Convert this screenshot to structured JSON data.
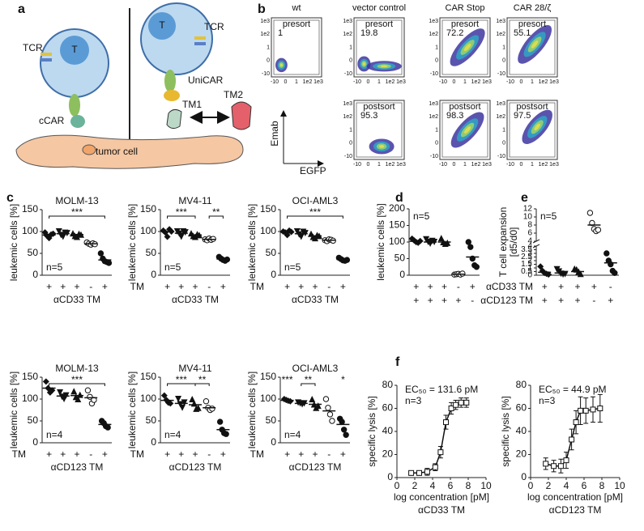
{
  "panel_a": {
    "label": "a",
    "tcr_left": "TCR",
    "t_left": "T",
    "tcr_right": "TCR",
    "t_right": "T",
    "unicar": "UniCAR",
    "ccar": "cCAR",
    "tm1": "TM1",
    "tm2": "TM2",
    "tumor": "tumor cell"
  },
  "panel_b": {
    "label": "b",
    "x_tick_labels": [
      "-10",
      "0",
      "1",
      "1e2",
      "1e3"
    ],
    "y_tick_labels": [
      "1e3",
      "1e2",
      "1",
      "0",
      "-10"
    ],
    "y_axis_label": "Emab",
    "x_axis_label": "EGFP",
    "columns": [
      {
        "title": "wt",
        "rows": [
          {
            "gate": "presort",
            "percent": 1
          }
        ]
      },
      {
        "title": "vector control",
        "rows": [
          {
            "gate": "presort",
            "percent": 19.8
          },
          {
            "gate": "postsort",
            "percent": 95.3
          }
        ]
      },
      {
        "title": "CAR Stop",
        "rows": [
          {
            "gate": "presort",
            "percent": 72.2
          },
          {
            "gate": "postsort",
            "percent": 98.3
          }
        ]
      },
      {
        "title": "CAR 28/ζ",
        "rows": [
          {
            "gate": "presort",
            "percent": 55.1
          },
          {
            "gate": "postsort",
            "percent": 97.5
          }
        ]
      }
    ]
  },
  "panel_c": {
    "label": "c",
    "charts": [
      {
        "title": "MOLM-13",
        "ylabel": "leukemic cells [%]",
        "ylim": [
          0,
          150
        ],
        "yticks": [
          0,
          50,
          100,
          150
        ],
        "n_label": "n=5",
        "xlabel": "αCD33 TM",
        "significance": [
          "***"
        ],
        "sign_rows": [
          {
            "signs": [
              "+",
              "+",
              "+",
              "-",
              "+"
            ]
          }
        ],
        "groups": [
          {
            "mean": 92,
            "points": [
              98,
              90,
              85,
              93,
              95
            ]
          },
          {
            "mean": 95,
            "points": [
              100,
              92,
              88,
              97,
              96
            ]
          },
          {
            "mean": 93,
            "points": [
              96,
              90,
              88,
              95,
              93
            ]
          },
          {
            "mean": 72,
            "points": [
              75,
              72,
              70,
              73,
              71
            ]
          },
          {
            "mean": 35,
            "points": [
              50,
              38,
              32,
              30,
              28
            ]
          }
        ]
      },
      {
        "title": "MV4-11",
        "ylabel": "leukemic cells [%]",
        "ylim": [
          0,
          150
        ],
        "yticks": [
          0,
          50,
          100,
          150
        ],
        "n_label": "n=5",
        "xlabel": "αCD33 TM",
        "significance": [
          "***",
          "**"
        ],
        "sign_rows": [
          {
            "label": "TM",
            "signs": [
              "+",
              "+",
              "+",
              "-",
              "+"
            ]
          }
        ],
        "groups": [
          {
            "mean": 100,
            "points": [
              102,
              98,
              88,
              105,
              100
            ]
          },
          {
            "mean": 96,
            "points": [
              100,
              95,
              88,
              100,
              98
            ]
          },
          {
            "mean": 92,
            "points": [
              96,
              90,
              88,
              94,
              92
            ]
          },
          {
            "mean": 82,
            "points": [
              82,
              80,
              84,
              81,
              83
            ]
          },
          {
            "mean": 37,
            "points": [
              42,
              38,
              35,
              33,
              36
            ]
          }
        ]
      },
      {
        "title": "OCI-AML3",
        "ylabel": "leukemic cells [%]",
        "ylim": [
          0,
          150
        ],
        "yticks": [
          0,
          50,
          100,
          150
        ],
        "n_label": "n=5",
        "xlabel": "αCD33 TM",
        "significance": [
          "***"
        ],
        "sign_rows": [
          {
            "label": "TM",
            "signs": [
              "+",
              "+",
              "+",
              "-",
              "+"
            ]
          }
        ],
        "groups": [
          {
            "mean": 98,
            "points": [
              100,
              98,
              92,
              102,
              99
            ]
          },
          {
            "mean": 95,
            "points": [
              100,
              93,
              88,
              99,
              96
            ]
          },
          {
            "mean": 90,
            "points": [
              95,
              88,
              85,
              92,
              90
            ]
          },
          {
            "mean": 80,
            "points": [
              80,
              78,
              82,
              81,
              79
            ]
          },
          {
            "mean": 36,
            "points": [
              40,
              37,
              34,
              33,
              35
            ]
          }
        ]
      },
      {
        "title": "MOLM-13",
        "ylabel": "leukemic cells [%]",
        "ylim": [
          0,
          150
        ],
        "yticks": [
          0,
          50,
          100,
          150
        ],
        "n_label": "n=4",
        "xlabel": "αCD123 TM",
        "significance": [
          "***"
        ],
        "sign_rows": [
          {
            "label": "TM",
            "signs": [
              "+",
              "+",
              "+",
              "-",
              "+"
            ]
          }
        ],
        "groups": [
          {
            "mean": 125,
            "points": [
              140,
              125,
              115,
              120
            ]
          },
          {
            "mean": 107,
            "points": [
              115,
              105,
              100,
              108
            ]
          },
          {
            "mean": 108,
            "points": [
              118,
              105,
              100,
              110
            ]
          },
          {
            "mean": 103,
            "points": [
              120,
              105,
              90,
              98
            ]
          },
          {
            "mean": 42,
            "points": [
              50,
              45,
              38,
              35
            ]
          }
        ]
      },
      {
        "title": "MV4-11",
        "ylabel": "leukemic cells [%]",
        "ylim": [
          0,
          150
        ],
        "yticks": [
          0,
          50,
          100,
          150
        ],
        "n_label": "n=4",
        "xlabel": "αCD123 TM",
        "significance": [
          "***",
          "**"
        ],
        "sign_rows": [
          {
            "label": "TM",
            "signs": [
              "+",
              "+",
              "+",
              "-",
              "+"
            ]
          }
        ],
        "groups": [
          {
            "mean": 97,
            "points": [
              108,
              98,
              92,
              90
            ]
          },
          {
            "mean": 90,
            "points": [
              100,
              88,
              80,
              92
            ]
          },
          {
            "mean": 87,
            "points": [
              100,
              90,
              78,
              80
            ]
          },
          {
            "mean": 80,
            "points": [
              95,
              80,
              75,
              78
            ]
          },
          {
            "mean": 30,
            "points": [
              48,
              30,
              22,
              20
            ]
          }
        ]
      },
      {
        "title": "OCI-AML3",
        "ylabel": "leukemic cells [%]",
        "ylim": [
          0,
          150
        ],
        "yticks": [
          0,
          50,
          100,
          150
        ],
        "n_label": "n=4",
        "xlabel": "αCD123 TM",
        "significance": [
          "***",
          "**",
          "*"
        ],
        "sign_rows": [
          {
            "label": "TM",
            "signs": [
              "+",
              "+",
              "+",
              "-",
              "+"
            ]
          }
        ],
        "groups": [
          {
            "mean": 97,
            "points": [
              100,
              98,
              96,
              95
            ]
          },
          {
            "mean": 90,
            "points": [
              92,
              90,
              88,
              90
            ]
          },
          {
            "mean": 88,
            "points": [
              100,
              88,
              80,
              85
            ]
          },
          {
            "mean": 73,
            "points": [
              100,
              80,
              65,
              50
            ]
          },
          {
            "mean": 42,
            "points": [
              55,
              48,
              30,
              18
            ]
          }
        ]
      }
    ]
  },
  "panel_d": {
    "label": "d",
    "ylabel": "leukemic cells [%]",
    "ylim": [
      0,
      200
    ],
    "yticks": [
      0,
      50,
      100,
      150,
      200
    ],
    "n_label": "n=5",
    "sign_rows": [
      {
        "signs": [
          "+",
          "+",
          "+",
          "-",
          "+"
        ]
      },
      {
        "signs": [
          "+",
          "+",
          "+",
          "+",
          "-"
        ]
      }
    ],
    "groups": [
      {
        "mean": 102,
        "points": [
          110,
          105,
          100,
          98,
          103
        ]
      },
      {
        "mean": 100,
        "points": [
          108,
          100,
          95,
          103,
          100
        ]
      },
      {
        "mean": 100,
        "points": [
          112,
          100,
          95,
          98
        ]
      },
      {
        "mean": 3,
        "points": [
          2,
          3,
          4,
          2,
          5
        ]
      },
      {
        "mean": 55,
        "points": [
          100,
          85,
          50,
          30,
          25
        ]
      }
    ]
  },
  "panel_e": {
    "label": "e",
    "ylabel": [
      "T cell expansion",
      "[d5/d0]"
    ],
    "ylim_high": [
      4,
      12
    ],
    "yticks_high": [
      4,
      6,
      8,
      10,
      12
    ],
    "ylim_low": [
      0,
      4
    ],
    "yticks_low": [
      0,
      0.5,
      1,
      1.5,
      2,
      2.5,
      3,
      3.5,
      4
    ],
    "n_label": "n=5",
    "sign_rows": [
      {
        "label": "αCD33 TM",
        "signs": [
          "+",
          "+",
          "+",
          "+",
          "-"
        ]
      },
      {
        "label": "αCD123 TM",
        "signs": [
          "+",
          "+",
          "+",
          "-",
          "+"
        ]
      }
    ],
    "groups": [
      {
        "mean": 0.4,
        "points": [
          1.2,
          0.6,
          0.3,
          0.2,
          0.1
        ]
      },
      {
        "mean": 0.3,
        "points": [
          0.8,
          0.5,
          0.2,
          0.1,
          0.15
        ]
      },
      {
        "mean": 0.5,
        "points": [
          0.9,
          0.8,
          0.5,
          0.2
        ]
      },
      {
        "mean": 8,
        "points": [
          11,
          8.5,
          7,
          6.5,
          6.8
        ]
      },
      {
        "mean": 1.7,
        "points": [
          3,
          2,
          1.5,
          0.6,
          0.3
        ]
      }
    ]
  },
  "panel_f": {
    "label": "f",
    "charts": [
      {
        "type": "line",
        "ylabel": "specific lysis [%]",
        "xlabel": "log concentration [pM]",
        "subtitle": "αCD33 TM",
        "annotation": "EC₅₀ = 131.6 pM",
        "n_label": "n=3",
        "xlim": [
          0,
          10
        ],
        "xticks": [
          0,
          2,
          4,
          6,
          8,
          10
        ],
        "ylim": [
          0,
          80
        ],
        "yticks": [
          0,
          20,
          40,
          60,
          80
        ],
        "x": [
          1.6,
          2.5,
          3.4,
          4.3,
          4.9,
          5.5,
          6.1,
          6.6,
          7.2,
          7.8
        ],
        "values": [
          4,
          4,
          5,
          9,
          22,
          48,
          60,
          63,
          65,
          65
        ],
        "errors": [
          2,
          2,
          3,
          3,
          5,
          6,
          5,
          4,
          4,
          4
        ]
      },
      {
        "type": "line",
        "ylabel": "specific lysis [%]",
        "xlabel": "log concentration [pM]",
        "subtitle": "αCD123 TM",
        "annotation": "EC₅₀ = 44.9 pM",
        "n_label": "n=3",
        "xlim": [
          0,
          10
        ],
        "xticks": [
          0,
          2,
          4,
          6,
          8,
          10
        ],
        "ylim": [
          0,
          80
        ],
        "yticks": [
          0,
          20,
          40,
          60,
          80
        ],
        "x": [
          1.7,
          2.6,
          3.4,
          4.0,
          4.6,
          5.1,
          5.6,
          6.2,
          7.0,
          7.8
        ],
        "values": [
          12,
          10,
          10,
          15,
          33,
          48,
          58,
          58,
          59,
          60
        ],
        "errors": [
          5,
          5,
          6,
          7,
          9,
          10,
          12,
          11,
          11,
          12
        ]
      }
    ]
  }
}
